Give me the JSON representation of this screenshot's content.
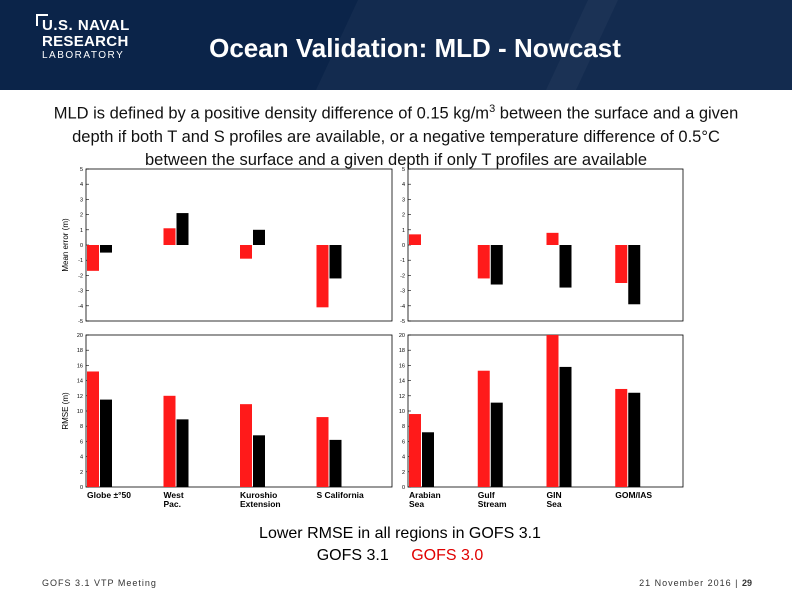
{
  "header": {
    "logo_line1": "U.S. NAVAL",
    "logo_line2": "RESEARCH",
    "logo_line3": "LABORATORY",
    "title": "Ocean Validation: MLD - Nowcast",
    "background_color": "#0b2449"
  },
  "description": {
    "line1_pre": "MLD is defined by a positive density difference of 0.15 kg/m",
    "line1_sup": "3",
    "line1_post": " between the surface and a given",
    "line2": "depth if both T and S profiles are available, or a negative temperature difference of 0.5°C",
    "line3": "between the surface and a given depth if only T profiles are available"
  },
  "summary": {
    "text": "Lower RMSE in all regions in GOFS 3.1",
    "legend_31": "GOFS 3.1",
    "legend_30": "GOFS 3.0"
  },
  "footer": {
    "left": "GOFS 3.1 VTP Meeting",
    "right_date": "21 November 2016 | ",
    "page": "29"
  },
  "colors": {
    "gofs30": "#ff1a1a",
    "gofs31": "#000000"
  },
  "chart_data": [
    {
      "id": "mean-left",
      "type": "bar",
      "ylabel": "Mean error (m)",
      "ylim": [
        -5,
        5
      ],
      "yticks": [
        5,
        4,
        3,
        2,
        1,
        0,
        -1,
        -2,
        -3,
        -4,
        -5
      ],
      "categories": [
        "Globe ±°50",
        "West Pac.",
        "Kuroshio Extension",
        "S California"
      ],
      "series": [
        {
          "name": "GOFS 3.0",
          "values": [
            -1.7,
            1.1,
            -0.9,
            -4.1
          ]
        },
        {
          "name": "GOFS 3.1",
          "values": [
            -0.5,
            2.1,
            1.0,
            -2.2
          ]
        }
      ]
    },
    {
      "id": "mean-right",
      "type": "bar",
      "ylabel": "",
      "ylim": [
        -5,
        5
      ],
      "yticks": [
        5,
        4,
        3,
        2,
        1,
        0,
        -1,
        -2,
        -3,
        -4,
        -5
      ],
      "categories": [
        "Arabian Sea",
        "Gulf Stream",
        "GIN Sea",
        "GOM/IAS"
      ],
      "series": [
        {
          "name": "GOFS 3.0",
          "values": [
            0.7,
            -2.2,
            0.8,
            -2.5
          ]
        },
        {
          "name": "GOFS 3.1",
          "values": [
            0.0,
            -2.6,
            -2.8,
            -3.9
          ]
        }
      ]
    },
    {
      "id": "rmse-left",
      "type": "bar",
      "ylabel": "RMSE (m)",
      "ylim": [
        0,
        20
      ],
      "yticks": [
        20,
        18,
        16,
        14,
        12,
        10,
        8,
        6,
        4,
        2,
        0
      ],
      "categories": [
        "Globe ±°50",
        "West Pac.",
        "Kuroshio Extension",
        "S California"
      ],
      "series": [
        {
          "name": "GOFS 3.0",
          "values": [
            15.2,
            12.0,
            10.9,
            9.2
          ]
        },
        {
          "name": "GOFS 3.1",
          "values": [
            11.5,
            8.9,
            6.8,
            6.2
          ]
        }
      ]
    },
    {
      "id": "rmse-right",
      "type": "bar",
      "ylabel": "",
      "ylim": [
        0,
        20
      ],
      "yticks": [
        20,
        18,
        16,
        14,
        12,
        10,
        8,
        6,
        4,
        2,
        0
      ],
      "categories": [
        "Arabian Sea",
        "Gulf Stream",
        "GIN Sea",
        "GOM/IAS"
      ],
      "series": [
        {
          "name": "GOFS 3.0",
          "values": [
            9.6,
            15.3,
            20.0,
            12.9
          ]
        },
        {
          "name": "GOFS 3.1",
          "values": [
            7.2,
            11.1,
            15.8,
            12.4
          ]
        }
      ]
    }
  ]
}
